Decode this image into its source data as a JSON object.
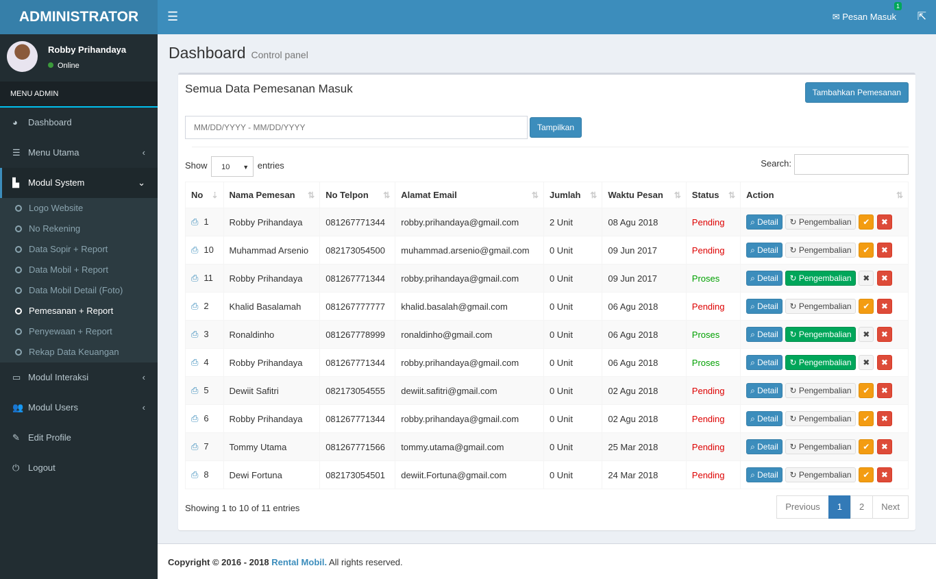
{
  "brand": "ADMINISTRATOR",
  "navbar": {
    "messages_label": "Pesan Masuk",
    "messages_count": "1"
  },
  "user": {
    "name": "Robby Prihandaya",
    "status": "Online"
  },
  "sidebar": {
    "header": "MENU ADMIN",
    "items": [
      {
        "label": "Dashboard",
        "icon": "dashboard-icon",
        "glyph": "◕"
      },
      {
        "label": "Menu Utama",
        "icon": "list-icon",
        "glyph": "☰",
        "chev": "‹"
      },
      {
        "label": "Modul System",
        "icon": "sitemap-icon",
        "glyph": "▙",
        "chev": "⌄"
      }
    ],
    "sub": [
      {
        "label": "Logo Website"
      },
      {
        "label": "No Rekening"
      },
      {
        "label": "Data Sopir + Report"
      },
      {
        "label": "Data Mobil + Report"
      },
      {
        "label": "Data Mobil Detail (Foto)"
      },
      {
        "label": "Pemesanan + Report",
        "active": true
      },
      {
        "label": "Penyewaan + Report"
      },
      {
        "label": "Rekap Data Keuangan"
      }
    ],
    "items2": [
      {
        "label": "Modul Interaksi",
        "icon": "television-icon",
        "glyph": "▭",
        "chev": "‹"
      },
      {
        "label": "Modul Users",
        "icon": "users-icon",
        "glyph": "👥",
        "chev": "‹"
      },
      {
        "label": "Edit Profile",
        "icon": "edit-icon",
        "glyph": "✎"
      },
      {
        "label": "Logout",
        "icon": "power-icon",
        "glyph": "⏻"
      }
    ]
  },
  "page": {
    "title": "Dashboard",
    "subtitle": "Control panel"
  },
  "box": {
    "title": "Semua Data Pemesanan Masuk",
    "add_label": "Tambahkan Pemesanan",
    "date_placeholder": "MM/DD/YYYY - MM/DD/YYYY",
    "show_button": "Tampilkan",
    "show": "Show",
    "entries": "entries",
    "length": "10",
    "search": "Search:"
  },
  "table": {
    "columns": [
      "No",
      "Nama Pemesan",
      "No Telpon",
      "Alamat Email",
      "Jumlah",
      "Waktu Pesan",
      "Status",
      "Action"
    ],
    "rows": [
      [
        "1",
        "Robby Prihandaya",
        "081267771344",
        "robby.prihandaya@gmail.com",
        "2 Unit",
        "08 Agu 2018",
        "Pending"
      ],
      [
        "10",
        "Muhammad Arsenio",
        "082173054500",
        "muhammad.arsenio@gmail.com",
        "0 Unit",
        "09 Jun 2017",
        "Pending"
      ],
      [
        "11",
        "Robby Prihandaya",
        "081267771344",
        "robby.prihandaya@gmail.com",
        "0 Unit",
        "09 Jun 2017",
        "Proses"
      ],
      [
        "2",
        "Khalid Basalamah",
        "081267777777",
        "khalid.basalah@gmail.com",
        "0 Unit",
        "06 Agu 2018",
        "Pending"
      ],
      [
        "3",
        "Ronaldinho",
        "081267778999",
        "ronaldinho@gmail.com",
        "0 Unit",
        "06 Agu 2018",
        "Proses"
      ],
      [
        "4",
        "Robby Prihandaya",
        "081267771344",
        "robby.prihandaya@gmail.com",
        "0 Unit",
        "06 Agu 2018",
        "Proses"
      ],
      [
        "5",
        "Dewiit Safitri",
        "082173054555",
        "dewiit.safitri@gmail.com",
        "0 Unit",
        "02 Agu 2018",
        "Pending"
      ],
      [
        "6",
        "Robby Prihandaya",
        "081267771344",
        "robby.prihandaya@gmail.com",
        "0 Unit",
        "02 Agu 2018",
        "Pending"
      ],
      [
        "7",
        "Tommy Utama",
        "081267771566",
        "tommy.utama@gmail.com",
        "0 Unit",
        "25 Mar 2018",
        "Pending"
      ],
      [
        "8",
        "Dewi Fortuna",
        "082173054501",
        "dewiit.Fortuna@gmail.com",
        "0 Unit",
        "24 Mar 2018",
        "Pending"
      ]
    ],
    "detail_label": "Detail",
    "return_label": "Pengembalian"
  },
  "info": "Showing 1 to 10 of 11 entries",
  "pagination": {
    "prev": "Previous",
    "pages": [
      "1",
      "2"
    ],
    "current": "1",
    "next": "Next"
  },
  "footer": {
    "prefix": "Copyright © 2016 - 2018 ",
    "link": "Rental Mobil.",
    "suffix": " All rights reserved."
  }
}
